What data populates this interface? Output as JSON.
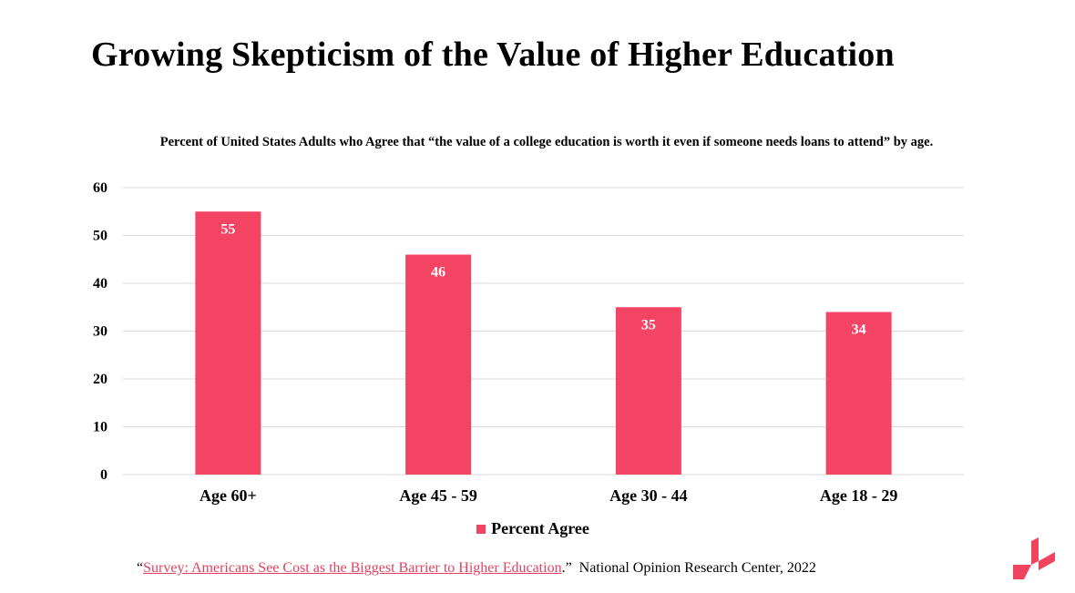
{
  "title": "Growing Skepticism of the Value of Higher Education",
  "chart_data": {
    "type": "bar",
    "title": "Percent of United States Adults who Agree that “the value of a college education is worth it even if someone needs loans to attend” by age.",
    "categories": [
      "Age 60+",
      "Age 45 - 59",
      "Age 30 - 44",
      "Age 18 - 29"
    ],
    "series": [
      {
        "name": "Percent Agree",
        "values": [
          55,
          46,
          35,
          34
        ],
        "color": "#f44463"
      }
    ],
    "yticks": [
      "0",
      "10",
      "20",
      "30",
      "40",
      "50",
      "60"
    ],
    "ylim": [
      0,
      60
    ],
    "grid": true,
    "legend_position": "bottom",
    "data_labels": true
  },
  "source": {
    "open_quote": "“",
    "link_text": "Survey: Americans See Cost as the Biggest Barrier to Higher Education",
    "close_text": ".”",
    "publisher": "National Opinion Research Center, 2022"
  },
  "colors": {
    "bar": "#f44463",
    "logo": "#f0435e",
    "link": "#e0435f"
  },
  "icons": {
    "brand": "brand-logo-icon"
  }
}
